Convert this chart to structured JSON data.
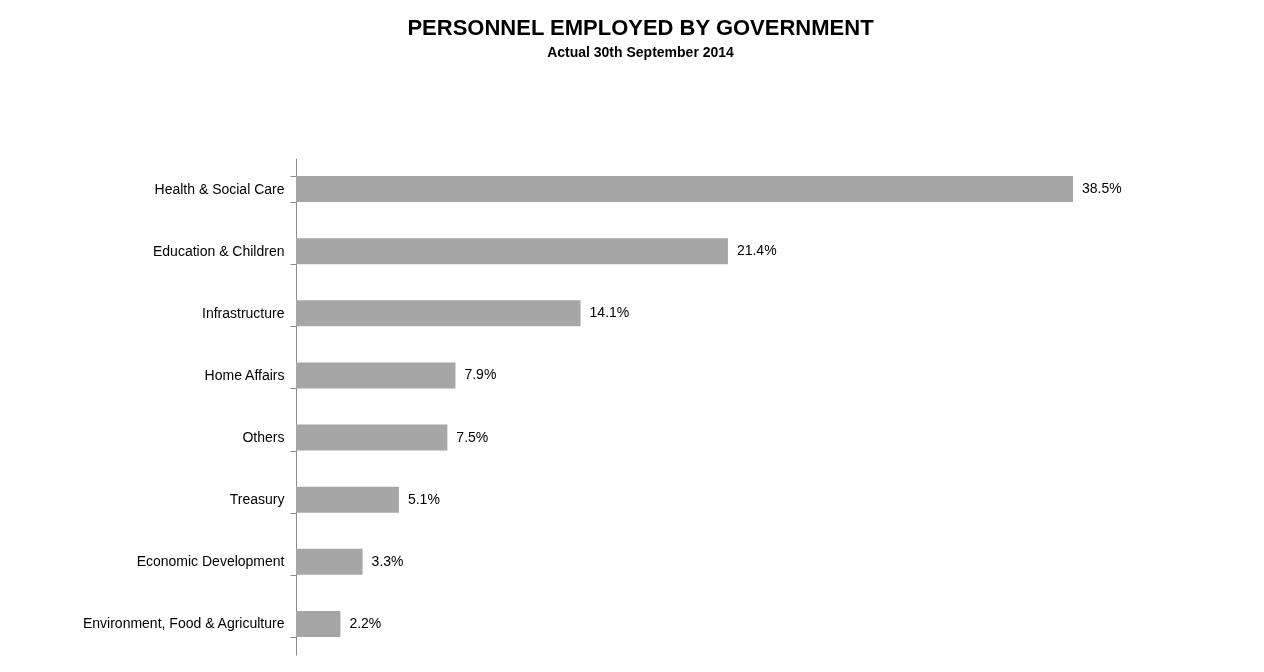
{
  "chart_data": {
    "type": "bar",
    "orientation": "horizontal",
    "title": "PERSONNEL EMPLOYED BY GOVERNMENT",
    "subtitle": "Actual 30th September 2014",
    "categories": [
      "Health & Social Care",
      "Education & Children",
      "Infrastructure",
      "Home Affairs",
      "Others",
      "Treasury",
      "Economic Development",
      "Environment, Food & Agriculture"
    ],
    "values": [
      38.5,
      21.4,
      14.1,
      7.9,
      7.5,
      5.1,
      3.3,
      2.2
    ],
    "value_labels": [
      "38.5%",
      "21.4%",
      "14.1%",
      "7.9%",
      "7.5%",
      "5.1%",
      "3.3%",
      "2.2%"
    ],
    "color": "#a6a6a6",
    "grid": false
  }
}
